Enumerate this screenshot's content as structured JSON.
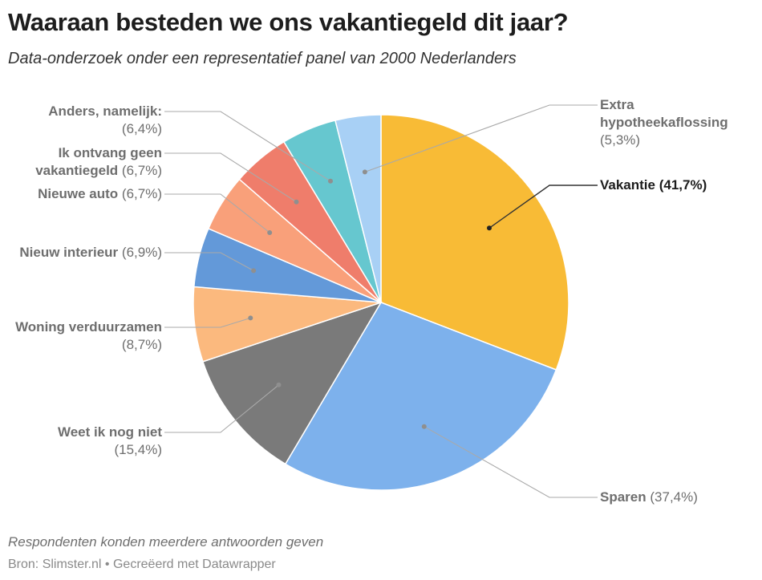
{
  "header": {
    "title": "Waaraan besteden we ons vakantiegeld dit jaar?",
    "subtitle": "Data-onderzoek onder een representatief panel van 2000 Nederlanders"
  },
  "footer": {
    "note": "Respondenten konden meerdere antwoorden geven",
    "source": "Bron: Slimster.nl • Gecreëerd met Datawrapper"
  },
  "chart_data": {
    "type": "pie",
    "title": "Waaraan besteden we ons vakantiegeld dit jaar?",
    "unit": "%",
    "slices": [
      {
        "name": "Vakantie",
        "value": 41.7,
        "value_label": "(41,7%)",
        "color": "#f8bb36"
      },
      {
        "name": "Sparen",
        "value": 37.4,
        "value_label": "(37,4%)",
        "color": "#7db1ec"
      },
      {
        "name": "Weet ik nog niet",
        "value": 15.4,
        "value_label": "(15,4%)",
        "color": "#7a7a7a"
      },
      {
        "name": "Woning verduurzamen",
        "value": 8.7,
        "value_label": "(8,7%)",
        "color": "#fbb97e"
      },
      {
        "name": "Nieuw interieur",
        "value": 6.9,
        "value_label": "(6,9%)",
        "color": "#6399d9"
      },
      {
        "name": "Nieuwe auto",
        "value": 6.7,
        "value_label": "(6,7%)",
        "color": "#f9a07a"
      },
      {
        "name": "Ik ontvang geen vakantiegeld",
        "value": 6.7,
        "value_label": "(6,7%)",
        "color": "#ef7d6b"
      },
      {
        "name": "Anders, namelijk:",
        "value": 6.4,
        "value_label": "(6,4%)",
        "color": "#66c7cf"
      },
      {
        "name": "Extra hypotheekaflossing",
        "value": 5.3,
        "value_label": "(5,3%)",
        "color": "#a8d0f5"
      }
    ],
    "highlighted": "Vakantie"
  }
}
